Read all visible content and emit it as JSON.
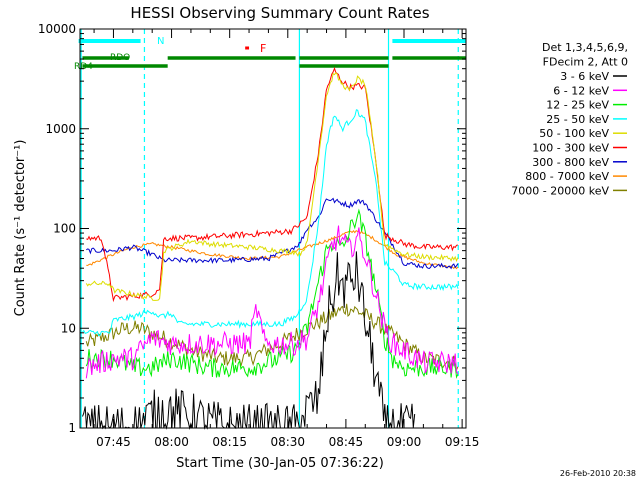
{
  "chart_data": {
    "type": "line",
    "title": "HESSI Observing Summary Count Rates",
    "xlabel": "Start Time (30-Jan-05 07:36:22)",
    "ylabel": "Count Rate (s⁻¹ detector⁻¹)",
    "x_unit": "minutes",
    "y_scale": "log",
    "xlim": [
      "07:36:22",
      "09:16:00"
    ],
    "ylim": [
      1,
      10000
    ],
    "xticks": [
      "07:45",
      "08:00",
      "08:15",
      "08:30",
      "08:45",
      "09:00",
      "09:15"
    ],
    "yticks": [
      "1",
      "10",
      "100",
      "1000",
      "10000"
    ],
    "legend_header": [
      "Det 1,3,4,5,6,9,",
      "FDecim 2, Att 0"
    ],
    "legend_position": "right",
    "series": [
      {
        "name": "3 - 6 keV",
        "color": "#000000",
        "x": [
          "07:37",
          "07:50",
          "07:57",
          "08:00",
          "08:14",
          "08:28",
          "08:32",
          "08:35",
          "08:38",
          "08:40",
          "08:43",
          "08:44",
          "08:46",
          "08:48",
          "08:50",
          "08:53",
          "08:55",
          "08:57",
          "09:00",
          "09:03"
        ],
        "y": [
          1,
          1,
          1.5,
          1.5,
          1,
          1,
          1,
          1.5,
          2,
          12,
          35,
          25,
          30,
          35,
          12,
          3,
          1,
          1,
          1,
          1
        ]
      },
      {
        "name": "6 - 12 keV",
        "color": "#ff00ff",
        "x": [
          "07:38",
          "07:45",
          "07:50",
          "07:55",
          "08:00",
          "08:10",
          "08:20",
          "08:22",
          "08:24",
          "08:28",
          "08:32",
          "08:35",
          "08:38",
          "08:41",
          "08:43",
          "08:46",
          "08:48",
          "08:50",
          "08:53",
          "08:55",
          "08:57",
          "09:00",
          "09:05",
          "09:10",
          "09:14"
        ],
        "y": [
          4,
          5,
          5,
          8,
          7,
          7,
          7,
          16,
          7,
          7,
          7,
          8,
          18,
          60,
          85,
          60,
          85,
          55,
          20,
          10,
          7,
          6,
          4.5,
          4.5,
          4.5
        ]
      },
      {
        "name": "12 - 25 keV",
        "color": "#00ee00",
        "x": [
          "07:38",
          "07:45",
          "07:50",
          "07:55",
          "08:00",
          "08:10",
          "08:20",
          "08:28",
          "08:32",
          "08:35",
          "08:38",
          "08:40",
          "08:42",
          "08:44",
          "08:46",
          "08:48",
          "08:50",
          "08:53",
          "08:55",
          "08:57",
          "09:00",
          "09:05",
          "09:14"
        ],
        "y": [
          5,
          5,
          4,
          4,
          5,
          4,
          4,
          5,
          6,
          10,
          30,
          60,
          75,
          60,
          95,
          140,
          80,
          22,
          8,
          5,
          4,
          4,
          4
        ]
      },
      {
        "name": "25 - 50 keV",
        "color": "#00ffff",
        "x": [
          "07:37",
          "07:44",
          "07:45",
          "07:50",
          "07:55",
          "07:57",
          "08:00",
          "08:02",
          "08:10",
          "08:20",
          "08:28",
          "08:32",
          "08:35",
          "08:38",
          "08:40",
          "08:42",
          "08:44",
          "08:46",
          "08:48",
          "08:50",
          "08:53",
          "08:55",
          "08:58",
          "09:00",
          "09:05",
          "09:14"
        ],
        "y": [
          9,
          9,
          12,
          13,
          15,
          13,
          14,
          11,
          11,
          11,
          11,
          13,
          20,
          120,
          700,
          1400,
          1000,
          1200,
          1500,
          1200,
          250,
          45,
          35,
          27,
          26,
          26
        ]
      },
      {
        "name": "50 - 100 keV",
        "color": "#dddd00",
        "x": [
          "07:38",
          "07:44",
          "07:45",
          "07:55",
          "07:57",
          "07:58",
          "08:05",
          "08:10",
          "08:20",
          "08:28",
          "08:32",
          "08:33",
          "08:35",
          "08:38",
          "08:40",
          "08:42",
          "08:44",
          "08:46",
          "08:48",
          "08:50",
          "08:53",
          "08:55",
          "08:58",
          "09:00",
          "09:05",
          "09:14"
        ],
        "y": [
          28,
          28,
          24,
          20,
          20,
          60,
          75,
          70,
          65,
          60,
          58,
          55,
          70,
          550,
          2200,
          3700,
          2800,
          2400,
          3200,
          2800,
          400,
          70,
          60,
          55,
          52,
          50
        ]
      },
      {
        "name": "100 - 300 keV",
        "color": "#ff0000",
        "x": [
          "07:38",
          "07:42",
          "07:45",
          "07:55",
          "07:57",
          "07:58",
          "08:05",
          "08:15",
          "08:25",
          "08:31",
          "08:33",
          "08:35",
          "08:38",
          "08:40",
          "08:42",
          "08:44",
          "08:46",
          "08:48",
          "08:50",
          "08:53",
          "08:55",
          "08:57",
          "09:00",
          "09:05",
          "09:14"
        ],
        "y": [
          80,
          80,
          20,
          22,
          25,
          80,
          80,
          85,
          90,
          95,
          110,
          130,
          600,
          2500,
          3900,
          3000,
          2600,
          2700,
          2600,
          400,
          85,
          80,
          70,
          65,
          65
        ]
      },
      {
        "name": "300 - 800 keV",
        "color": "#0000cc",
        "x": [
          "07:38",
          "07:42",
          "07:45",
          "07:50",
          "07:55",
          "07:57",
          "07:58",
          "08:05",
          "08:15",
          "08:25",
          "08:30",
          "08:33",
          "08:35",
          "08:38",
          "08:40",
          "08:44",
          "08:46",
          "08:48",
          "08:50",
          "08:53",
          "08:55",
          "08:57",
          "09:00",
          "09:05",
          "09:14"
        ],
        "y": [
          60,
          60,
          60,
          65,
          55,
          50,
          48,
          48,
          48,
          50,
          60,
          70,
          100,
          130,
          200,
          180,
          170,
          190,
          180,
          120,
          90,
          70,
          45,
          42,
          42
        ]
      },
      {
        "name": "800 - 7000 keV",
        "color": "#ff8800",
        "x": [
          "07:38",
          "07:45",
          "07:50",
          "07:55",
          "08:00",
          "08:10",
          "08:20",
          "08:28",
          "08:35",
          "08:42",
          "08:45",
          "08:48",
          "08:52",
          "08:58",
          "09:05",
          "09:14"
        ],
        "y": [
          42,
          55,
          65,
          70,
          65,
          55,
          50,
          52,
          65,
          80,
          90,
          95,
          80,
          55,
          45,
          40
        ]
      },
      {
        "name": "7000 - 20000 keV",
        "color": "#808000",
        "x": [
          "07:38",
          "07:42",
          "07:48",
          "07:52",
          "07:58",
          "08:05",
          "08:12",
          "08:20",
          "08:28",
          "08:35",
          "08:42",
          "08:45",
          "08:48",
          "08:52",
          "08:58",
          "09:05",
          "09:14"
        ],
        "y": [
          7,
          8,
          10,
          10,
          8,
          6,
          5,
          5,
          7,
          10,
          14,
          16,
          15,
          12,
          8,
          5,
          4.5
        ]
      }
    ],
    "annotations": {
      "bars": [
        {
          "label": "N",
          "color": "#00ffff",
          "segments": [
            [
              "07:36",
              "07:52"
            ],
            [
              "08:57",
              "09:16"
            ]
          ]
        },
        {
          "label": "F",
          "color": "#ff0000",
          "segments": [
            [
              "08:19",
              "08:20"
            ]
          ]
        },
        {
          "label": "RDO",
          "color": "#008800",
          "segments": [
            [
              "07:37",
              "07:49"
            ],
            [
              "07:59",
              "08:32"
            ],
            [
              "08:33",
              "08:56"
            ],
            [
              "08:57",
              "09:16"
            ]
          ]
        },
        {
          "label": "RD4",
          "color": "#008800",
          "segments": [
            [
              "07:37",
              "07:59"
            ],
            [
              "08:33",
              "08:56"
            ]
          ]
        }
      ],
      "vlines": [
        {
          "x": "07:36:40",
          "color": "#00ffff",
          "style": "solid"
        },
        {
          "x": "07:53",
          "color": "#00ffff",
          "style": "dashed"
        },
        {
          "x": "08:33",
          "color": "#00ffff",
          "style": "solid"
        },
        {
          "x": "08:56",
          "color": "#00ffff",
          "style": "solid"
        },
        {
          "x": "09:14",
          "color": "#00ffff",
          "style": "dashed"
        }
      ]
    },
    "timestamp": "26-Feb-2010 20:38"
  }
}
